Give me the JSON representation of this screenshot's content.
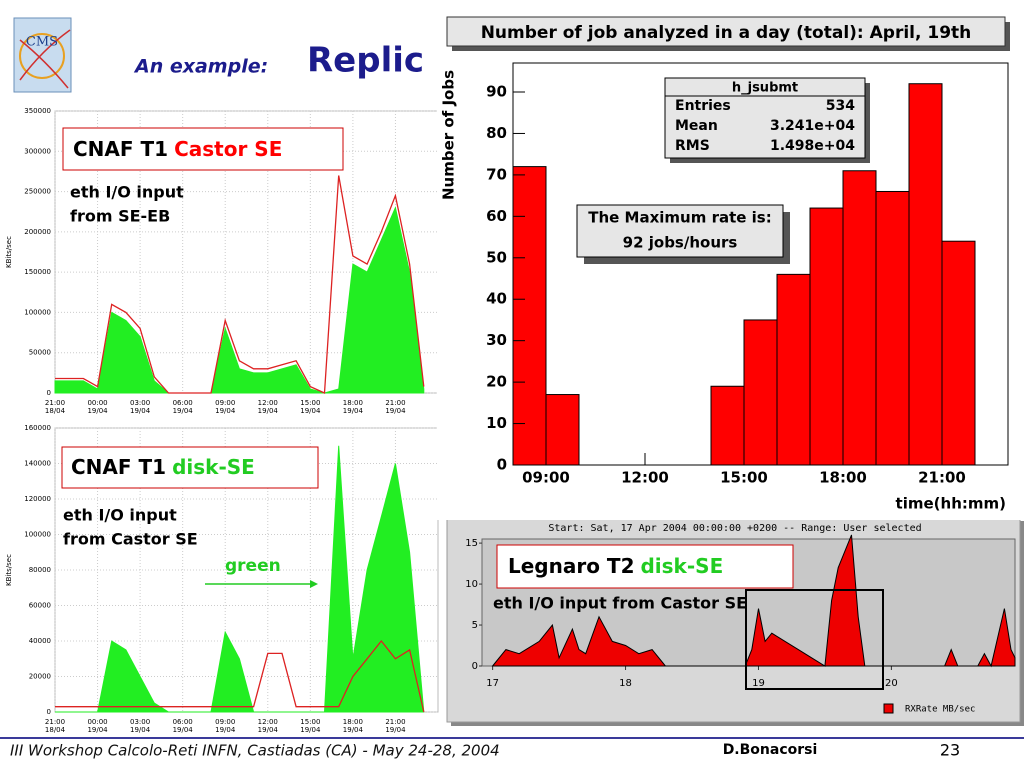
{
  "slide": {
    "logo": "CMS",
    "title_prefix": "An example:",
    "title": "Replic",
    "footer": "III Workshop Calcolo-Reti INFN, Castiadas (CA) - May 24-28, 2004",
    "author": "D.Bonacorsi",
    "page": "23"
  },
  "chart_data": [
    {
      "type": "histogram",
      "title": "Number of job analyzed in a day (total): April, 19th",
      "y_label": "Number of Jobs",
      "x_label": "time(hh:mm)",
      "bins": [
        8,
        9,
        10,
        11,
        12,
        13,
        14,
        15,
        16,
        17,
        18,
        19,
        20,
        21,
        22,
        23
      ],
      "counts": [
        72,
        17,
        0,
        0,
        0,
        0,
        19,
        35,
        46,
        62,
        71,
        66,
        92,
        54,
        0
      ],
      "color": "#ff0000",
      "xlim": [
        8,
        23
      ],
      "xticks": [
        {
          "value": 9,
          "label": "09:00"
        },
        {
          "value": 12,
          "label": "12:00"
        },
        {
          "value": 15,
          "label": "15:00"
        },
        {
          "value": 18,
          "label": "18:00"
        },
        {
          "value": 21,
          "label": "21:00"
        }
      ],
      "ylim": [
        0,
        97
      ],
      "yticks": [
        0,
        10,
        20,
        30,
        40,
        50,
        60,
        70,
        80,
        90
      ],
      "stats": {
        "name": "h_jsubmt",
        "rows": [
          [
            "Entries",
            "534"
          ],
          [
            "Mean",
            "3.241e+04"
          ],
          [
            "RMS",
            "1.498e+04"
          ]
        ]
      },
      "annotation": [
        "The Maximum rate is:",
        "92 jobs/hours"
      ]
    },
    {
      "type": "area",
      "y_label": "KBits/sec",
      "site": "CNAF T1",
      "element": "Castor SE",
      "note": [
        "eth I/O input",
        "from SE-EB"
      ],
      "x": [
        21,
        22,
        23,
        24,
        25,
        26,
        27,
        28,
        29,
        30,
        31,
        32,
        33,
        34,
        35,
        36,
        37,
        38,
        39,
        40,
        41,
        42,
        43,
        44,
        45,
        46,
        47
      ],
      "series": [
        {
          "style": "area",
          "color": "#22ee22",
          "values": [
            15000,
            15000,
            15000,
            5000,
            100000,
            90000,
            70000,
            15000,
            0,
            0,
            0,
            0,
            80000,
            30000,
            25000,
            25000,
            30000,
            35000,
            5000,
            0,
            5000,
            160000,
            150000,
            190000,
            230000,
            150000,
            5000
          ]
        },
        {
          "style": "line",
          "color": "#dd2222",
          "values": [
            18000,
            18000,
            18000,
            8000,
            110000,
            100000,
            80000,
            20000,
            0,
            0,
            0,
            0,
            90000,
            40000,
            30000,
            30000,
            35000,
            40000,
            8000,
            0,
            270000,
            170000,
            160000,
            200000,
            245000,
            160000,
            8000
          ]
        }
      ],
      "xlim": [
        21,
        48
      ],
      "xticks": [
        {
          "value": 21,
          "label": "21:00",
          "date": "18/04"
        },
        {
          "value": 24,
          "label": "00:00",
          "date": "19/04"
        },
        {
          "value": 27,
          "label": "03:00",
          "date": "19/04"
        },
        {
          "value": 30,
          "label": "06:00",
          "date": "19/04"
        },
        {
          "value": 33,
          "label": "09:00",
          "date": "19/04"
        },
        {
          "value": 36,
          "label": "12:00",
          "date": "19/04"
        },
        {
          "value": 39,
          "label": "15:00",
          "date": "19/04"
        },
        {
          "value": 42,
          "label": "18:00",
          "date": "19/04"
        },
        {
          "value": 45,
          "label": "21:00",
          "date": "19/04"
        }
      ],
      "ylim": [
        0,
        350000
      ],
      "yticks": [
        0,
        50000,
        100000,
        150000,
        200000,
        250000,
        300000,
        350000
      ],
      "grid": true
    },
    {
      "type": "area",
      "y_label": "KBits/sec",
      "site": "CNAF T1",
      "element": "disk-SE",
      "note": [
        "eth I/O input",
        "from Castor SE"
      ],
      "callout": "green",
      "x": [
        21,
        22,
        23,
        24,
        25,
        26,
        27,
        28,
        29,
        30,
        31,
        32,
        33,
        34,
        35,
        36,
        37,
        38,
        39,
        40,
        41,
        42,
        43,
        44,
        45,
        46,
        47
      ],
      "series": [
        {
          "style": "area",
          "color": "#22ee22",
          "values": [
            0,
            0,
            0,
            0,
            40000,
            35000,
            20000,
            5000,
            0,
            0,
            0,
            0,
            45000,
            30000,
            0,
            0,
            0,
            0,
            0,
            0,
            150000,
            30000,
            80000,
            110000,
            140000,
            90000,
            0
          ]
        },
        {
          "style": "line",
          "color": "#dd2222",
          "values": [
            3000,
            3000,
            3000,
            3000,
            3000,
            3000,
            3000,
            3000,
            3000,
            3000,
            3000,
            3000,
            3000,
            3000,
            3000,
            33000,
            33000,
            3000,
            3000,
            3000,
            3000,
            20000,
            30000,
            40000,
            30000,
            35000,
            0
          ]
        }
      ],
      "xlim": [
        21,
        48
      ],
      "xticks": [
        {
          "value": 21,
          "label": "21:00",
          "date": "18/04"
        },
        {
          "value": 24,
          "label": "00:00",
          "date": "19/04"
        },
        {
          "value": 27,
          "label": "03:00",
          "date": "19/04"
        },
        {
          "value": 30,
          "label": "06:00",
          "date": "19/04"
        },
        {
          "value": 33,
          "label": "09:00",
          "date": "19/04"
        },
        {
          "value": 36,
          "label": "12:00",
          "date": "19/04"
        },
        {
          "value": 39,
          "label": "15:00",
          "date": "19/04"
        },
        {
          "value": 42,
          "label": "18:00",
          "date": "19/04"
        },
        {
          "value": 45,
          "label": "21:00",
          "date": "19/04"
        }
      ],
      "ylim": [
        0,
        160000
      ],
      "yticks": [
        0,
        20000,
        40000,
        60000,
        80000,
        100000,
        120000,
        140000,
        160000
      ],
      "grid": true
    },
    {
      "type": "area",
      "title": "Start: Sat, 17 Apr 2004 00:00:00 +0200 -- Range: User selected",
      "site": "Legnaro T2",
      "element": "disk-SE",
      "note": [
        "eth I/O input from Castor SE"
      ],
      "x": [
        17.0,
        17.1,
        17.2,
        17.35,
        17.45,
        17.5,
        17.6,
        17.65,
        17.7,
        17.8,
        17.9,
        18.0,
        18.1,
        18.2,
        18.3,
        18.9,
        18.95,
        19.0,
        19.05,
        19.1,
        19.2,
        19.3,
        19.4,
        19.5,
        19.55,
        19.6,
        19.7,
        19.75,
        19.8,
        20.4,
        20.45,
        20.5,
        20.65,
        20.7,
        20.75,
        20.85,
        20.9,
        20.93
      ],
      "series": [
        {
          "name": "RXRate MB/sec",
          "style": "area",
          "color": "#ee0000",
          "edge": "#000000",
          "values": [
            0,
            2,
            1.5,
            3,
            5,
            1,
            4.5,
            2,
            1.5,
            6,
            3,
            2.5,
            1.5,
            2,
            0,
            0,
            2,
            7,
            3,
            4,
            3,
            2,
            1,
            0,
            8,
            12,
            16,
            6,
            0,
            0,
            2,
            0,
            0,
            1.5,
            0,
            7,
            2,
            1
          ]
        }
      ],
      "xlim": [
        16.92,
        20.93
      ],
      "xticks": [
        17,
        18,
        19,
        20
      ],
      "ylim": [
        0,
        15.5
      ],
      "yticks": [
        0,
        5,
        10,
        15
      ],
      "grid": false,
      "legend": "bottom-right"
    }
  ]
}
